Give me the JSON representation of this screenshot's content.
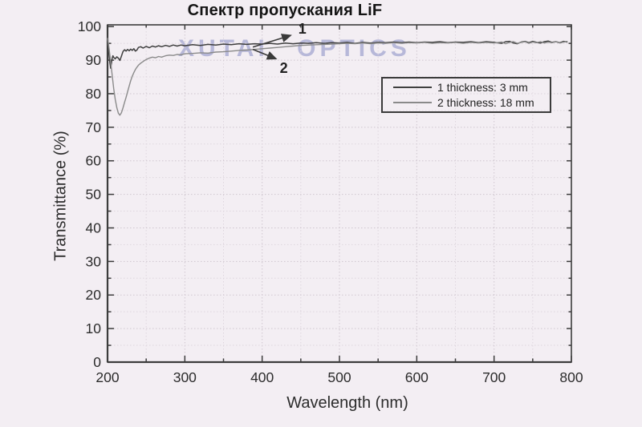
{
  "title": "Спектр пропускания LiF",
  "watermark": "XUTAI OPTICS",
  "chart_data": {
    "type": "line",
    "title": "Спектр пропускания LiF",
    "xlabel": "Wavelength (nm)",
    "ylabel": "Transmittance (%)",
    "xlim": [
      200,
      800
    ],
    "ylim": [
      0,
      100
    ],
    "x_tick_labels": [
      "200",
      "300",
      "400",
      "500",
      "600",
      "700",
      "800"
    ],
    "x_major_ticks": [
      200,
      300,
      400,
      500,
      600,
      700,
      800
    ],
    "x_minor_ticks": [
      250,
      350,
      450,
      550,
      650,
      750
    ],
    "y_tick_labels": [
      "0",
      "10",
      "20",
      "30",
      "40",
      "50",
      "60",
      "70",
      "80",
      "90",
      "100"
    ],
    "y_major_ticks": [
      0,
      10,
      20,
      30,
      40,
      50,
      60,
      70,
      80,
      90,
      100
    ],
    "y_minor_ticks": [
      5,
      15,
      25,
      35,
      45,
      55,
      65,
      75,
      85,
      95
    ],
    "grid": true,
    "legend": {
      "position": "upper right",
      "entries": [
        {
          "label": "1 thickness: 3 mm",
          "color": "#3f3f3f"
        },
        {
          "label": "2 thickness: 18 mm",
          "color": "#8a8a8a"
        }
      ]
    },
    "annotations": [
      {
        "label": "1",
        "label_x": 452,
        "label_y": 99.3,
        "arrow_from_x": 388,
        "arrow_from_y": 93.9,
        "arrow_to_x": 437,
        "arrow_to_y": 97.4
      },
      {
        "label": "2",
        "label_x": 428,
        "label_y": 87.6,
        "arrow_from_x": 388,
        "arrow_from_y": 93.2,
        "arrow_to_x": 418,
        "arrow_to_y": 90.4
      }
    ],
    "series": [
      {
        "name": "1 thickness: 3 mm",
        "color": "#3f3f3f",
        "points": [
          [
            200,
            97.3
          ],
          [
            201,
            94.5
          ],
          [
            202,
            91.5
          ],
          [
            203,
            89.3
          ],
          [
            204,
            87.6
          ],
          [
            205,
            89.0
          ],
          [
            206,
            90.6
          ],
          [
            207,
            91.3
          ],
          [
            208,
            90.8
          ],
          [
            210,
            90.4
          ],
          [
            212,
            91.0
          ],
          [
            214,
            90.6
          ],
          [
            216,
            89.9
          ],
          [
            218,
            91.2
          ],
          [
            220,
            92.6
          ],
          [
            222,
            93.1
          ],
          [
            224,
            92.7
          ],
          [
            226,
            93.2
          ],
          [
            228,
            92.8
          ],
          [
            230,
            93.3
          ],
          [
            232,
            92.9
          ],
          [
            234,
            93.4
          ],
          [
            236,
            92.7
          ],
          [
            238,
            93.0
          ],
          [
            240,
            93.8
          ],
          [
            243,
            94.0
          ],
          [
            246,
            93.6
          ],
          [
            250,
            94.1
          ],
          [
            254,
            93.7
          ],
          [
            258,
            94.2
          ],
          [
            262,
            93.9
          ],
          [
            266,
            94.3
          ],
          [
            270,
            94.0
          ],
          [
            275,
            94.4
          ],
          [
            280,
            94.1
          ],
          [
            285,
            94.5
          ],
          [
            290,
            94.2
          ],
          [
            295,
            94.5
          ],
          [
            300,
            94.3
          ],
          [
            310,
            94.6
          ],
          [
            320,
            94.4
          ],
          [
            330,
            94.7
          ],
          [
            340,
            94.5
          ],
          [
            350,
            94.8
          ],
          [
            360,
            94.6
          ],
          [
            370,
            94.9
          ],
          [
            380,
            94.7
          ],
          [
            390,
            94.9
          ],
          [
            400,
            94.8
          ],
          [
            410,
            95.0
          ],
          [
            420,
            94.8
          ],
          [
            430,
            95.1
          ],
          [
            440,
            94.9
          ],
          [
            450,
            95.1
          ],
          [
            460,
            95.0
          ],
          [
            470,
            95.2
          ],
          [
            480,
            95.0
          ],
          [
            490,
            95.2
          ],
          [
            500,
            95.1
          ],
          [
            510,
            95.3
          ],
          [
            520,
            95.0
          ],
          [
            530,
            95.3
          ],
          [
            540,
            95.1
          ],
          [
            550,
            95.3
          ],
          [
            560,
            95.2
          ],
          [
            570,
            95.4
          ],
          [
            580,
            95.2
          ],
          [
            590,
            95.4
          ],
          [
            600,
            95.2
          ],
          [
            610,
            95.4
          ],
          [
            620,
            95.3
          ],
          [
            630,
            95.5
          ],
          [
            640,
            95.2
          ],
          [
            650,
            95.4
          ],
          [
            660,
            95.3
          ],
          [
            670,
            95.5
          ],
          [
            680,
            95.2
          ],
          [
            690,
            95.5
          ],
          [
            700,
            95.3
          ],
          [
            710,
            95.0
          ],
          [
            715,
            95.5
          ],
          [
            720,
            95.6
          ],
          [
            725,
            95.1
          ],
          [
            730,
            94.9
          ],
          [
            735,
            95.4
          ],
          [
            740,
            95.6
          ],
          [
            745,
            95.2
          ],
          [
            750,
            95.6
          ],
          [
            755,
            95.3
          ],
          [
            760,
            95.1
          ],
          [
            765,
            95.5
          ],
          [
            770,
            95.7
          ],
          [
            775,
            95.3
          ],
          [
            780,
            95.5
          ],
          [
            785,
            95.2
          ],
          [
            790,
            95.6
          ],
          [
            795,
            95.4
          ]
        ]
      },
      {
        "name": "2 thickness: 18 mm",
        "color": "#8a8a8a",
        "points": [
          [
            200,
            96.6
          ],
          [
            202,
            93.5
          ],
          [
            204,
            89.5
          ],
          [
            206,
            85.5
          ],
          [
            208,
            81.5
          ],
          [
            210,
            78.3
          ],
          [
            212,
            75.8
          ],
          [
            214,
            74.2
          ],
          [
            216,
            73.6
          ],
          [
            218,
            74.3
          ],
          [
            220,
            75.8
          ],
          [
            222,
            77.4
          ],
          [
            224,
            78.9
          ],
          [
            226,
            80.6
          ],
          [
            228,
            82.3
          ],
          [
            230,
            83.9
          ],
          [
            232,
            85.2
          ],
          [
            234,
            86.3
          ],
          [
            236,
            87.2
          ],
          [
            238,
            87.9
          ],
          [
            240,
            88.5
          ],
          [
            243,
            89.1
          ],
          [
            246,
            89.6
          ],
          [
            250,
            90.2
          ],
          [
            254,
            90.6
          ],
          [
            258,
            90.9
          ],
          [
            262,
            90.7
          ],
          [
            266,
            91.1
          ],
          [
            270,
            90.9
          ],
          [
            275,
            91.3
          ],
          [
            280,
            91.5
          ],
          [
            285,
            91.4
          ],
          [
            290,
            91.7
          ],
          [
            295,
            91.6
          ],
          [
            300,
            91.9
          ],
          [
            310,
            92.0
          ],
          [
            320,
            92.2
          ],
          [
            330,
            92.1
          ],
          [
            340,
            92.4
          ],
          [
            350,
            92.5
          ],
          [
            360,
            92.7
          ],
          [
            370,
            92.9
          ],
          [
            380,
            93.0
          ],
          [
            390,
            93.2
          ],
          [
            400,
            93.4
          ],
          [
            410,
            93.6
          ],
          [
            420,
            93.8
          ],
          [
            430,
            94.0
          ],
          [
            440,
            94.2
          ],
          [
            450,
            94.4
          ],
          [
            460,
            94.5
          ],
          [
            470,
            94.6
          ],
          [
            480,
            94.7
          ],
          [
            490,
            94.8
          ],
          [
            500,
            94.9
          ],
          [
            510,
            95.0
          ],
          [
            520,
            94.9
          ],
          [
            530,
            95.1
          ],
          [
            540,
            94.9
          ],
          [
            550,
            95.1
          ],
          [
            560,
            95.0
          ],
          [
            570,
            95.2
          ],
          [
            580,
            95.0
          ],
          [
            590,
            95.2
          ],
          [
            600,
            95.1
          ],
          [
            610,
            95.3
          ],
          [
            620,
            95.0
          ],
          [
            630,
            95.2
          ],
          [
            640,
            95.1
          ],
          [
            650,
            95.3
          ],
          [
            660,
            95.0
          ],
          [
            670,
            95.3
          ],
          [
            680,
            95.1
          ],
          [
            690,
            95.3
          ],
          [
            700,
            95.1
          ],
          [
            710,
            95.4
          ],
          [
            715,
            94.9
          ],
          [
            720,
            95.3
          ],
          [
            725,
            95.5
          ],
          [
            730,
            95.0
          ],
          [
            735,
            95.3
          ],
          [
            740,
            95.5
          ],
          [
            745,
            95.0
          ],
          [
            750,
            95.4
          ],
          [
            755,
            95.2
          ],
          [
            760,
            95.5
          ],
          [
            765,
            95.1
          ],
          [
            770,
            95.4
          ],
          [
            775,
            95.2
          ],
          [
            780,
            95.5
          ],
          [
            785,
            95.1
          ],
          [
            790,
            95.4
          ],
          [
            795,
            95.6
          ]
        ]
      }
    ],
    "style": {
      "background": "#f3eef3",
      "axis_color": "#3c3c3c",
      "grid_minor_color": "#ded6de",
      "grid_major_color": "#cfc6cf",
      "tick_label_color": "#2c2c2c",
      "watermark_color": "#9296c8"
    }
  }
}
